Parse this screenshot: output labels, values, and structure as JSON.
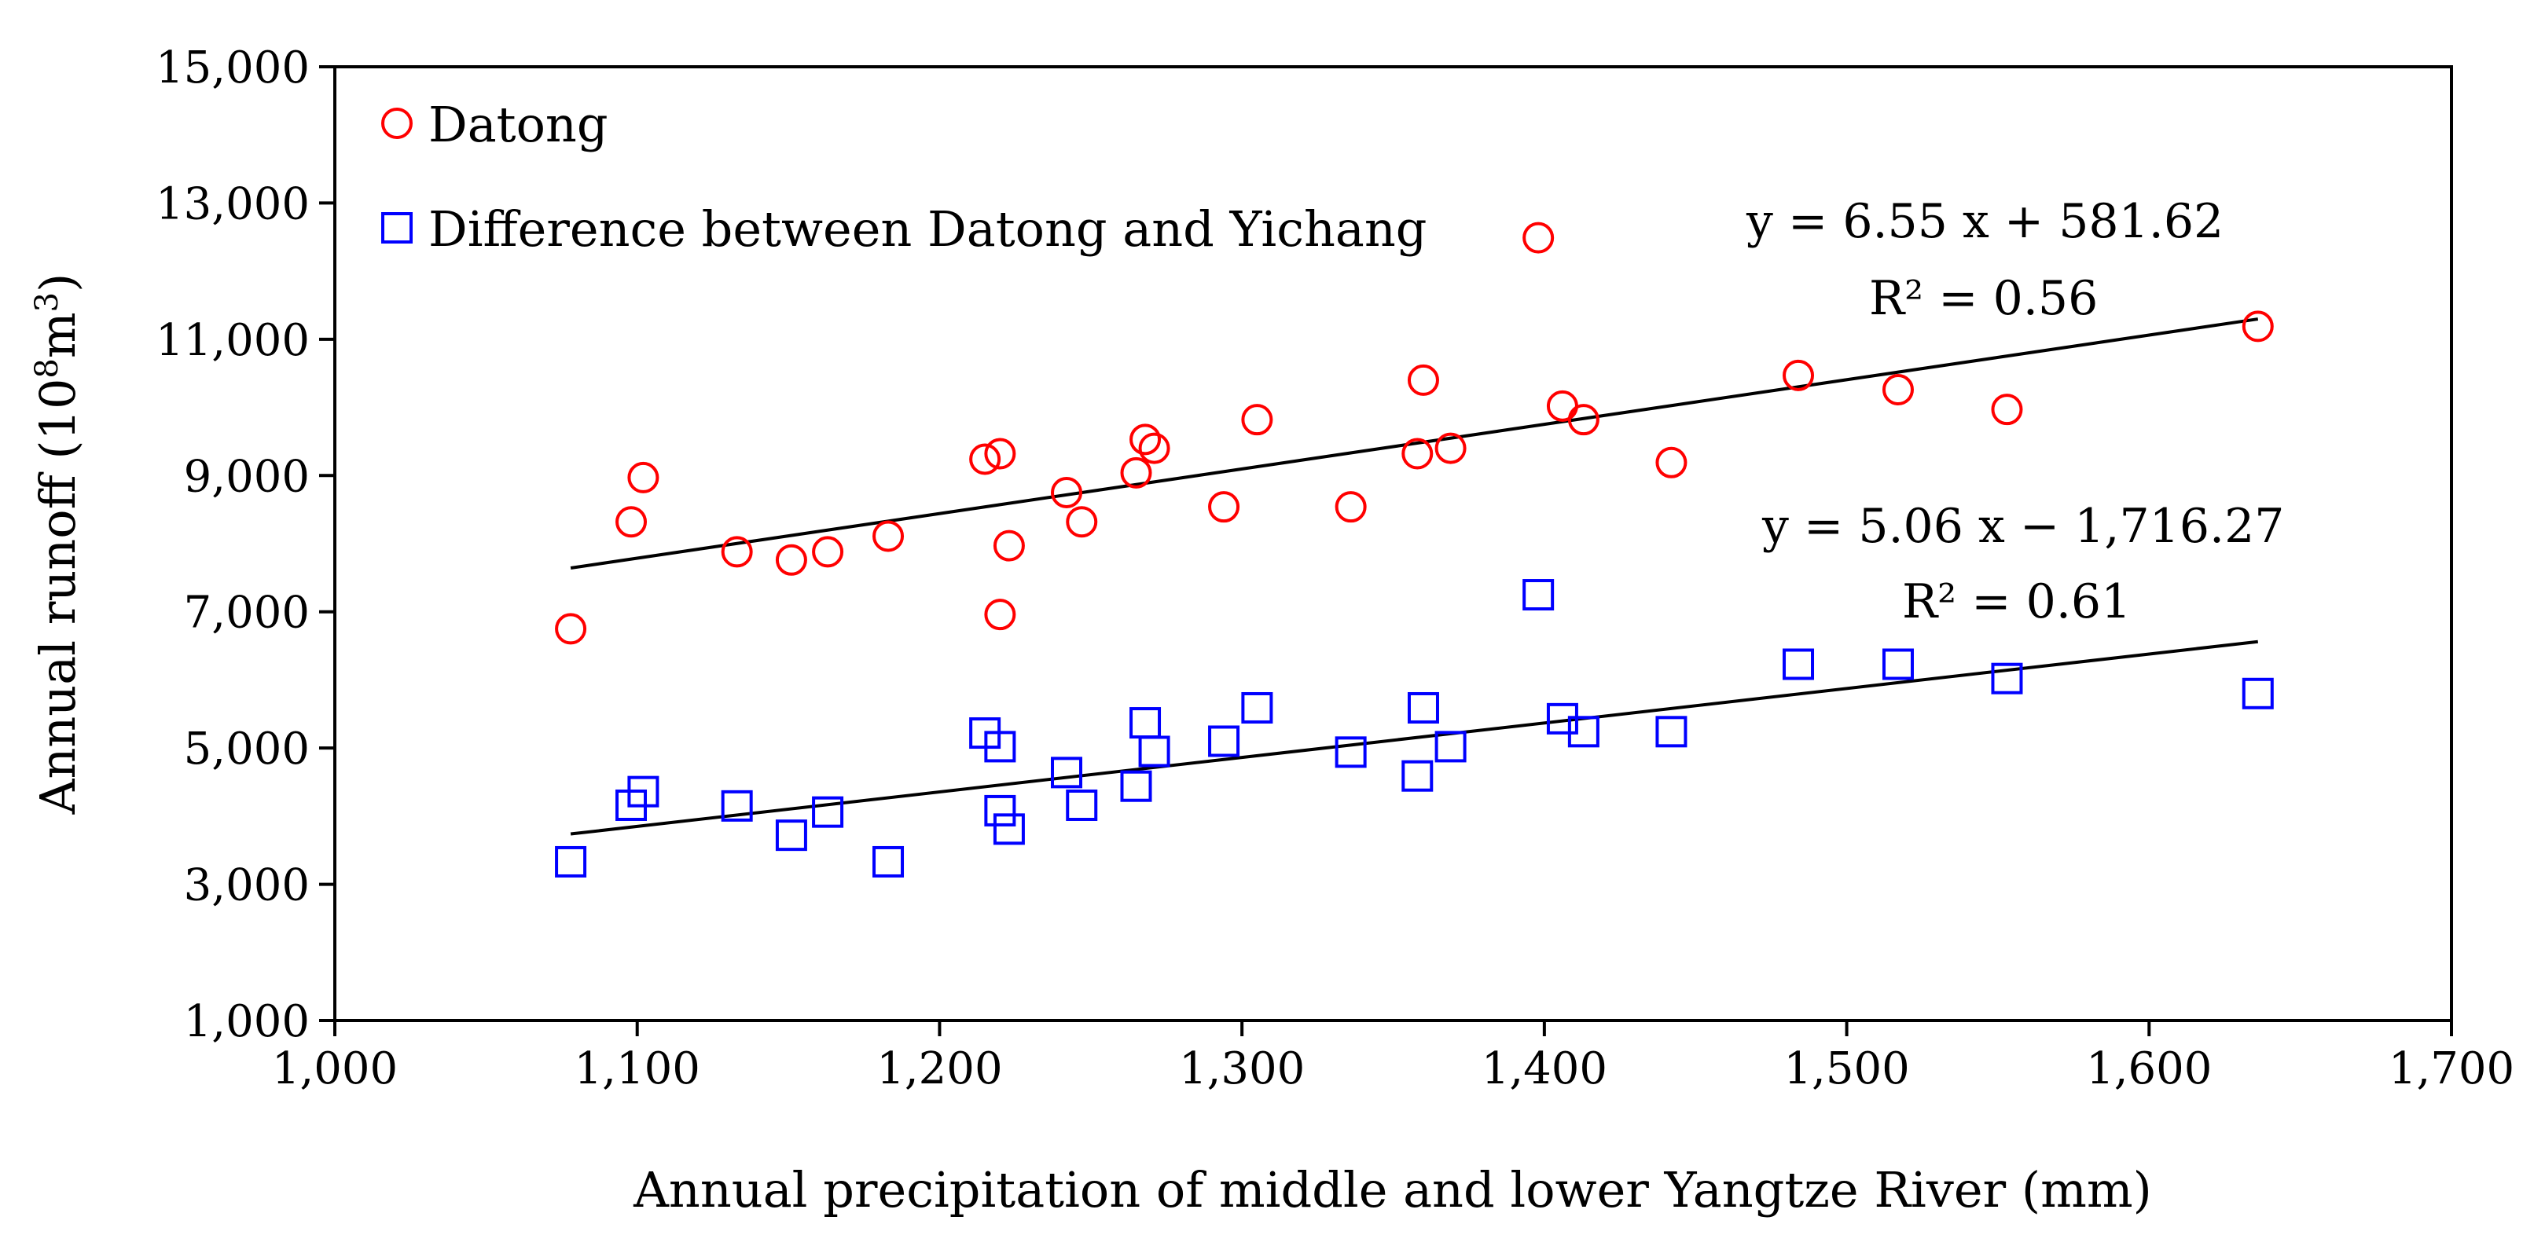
{
  "chart_data": {
    "type": "scatter",
    "xlabel": "Annual precipitation of middle and lower Yangtze River (mm)",
    "ylabel": "Annual runoff",
    "ylabel_unit_base": "10",
    "ylabel_unit_exp": "8",
    "ylabel_unit_m": "m",
    "ylabel_unit_m_exp": "3",
    "xlim": [
      1000,
      1700
    ],
    "ylim": [
      1000,
      15000
    ],
    "xticks": [
      1000,
      1100,
      1200,
      1300,
      1400,
      1500,
      1600,
      1700
    ],
    "xtick_labels": [
      "1,000",
      "1,100",
      "1,200",
      "1,300",
      "1,400",
      "1,500",
      "1,600",
      "1,700"
    ],
    "yticks": [
      1000,
      3000,
      5000,
      7000,
      9000,
      11000,
      13000,
      15000
    ],
    "ytick_labels": [
      "1,000",
      "3,000",
      "5,000",
      "7,000",
      "9,000",
      "11,000",
      "13,000",
      "15,000"
    ],
    "legend_position": "top-left",
    "series": [
      {
        "name": "Datong",
        "marker": "circle",
        "color": "#ff0000",
        "points": [
          [
            1078,
            6750
          ],
          [
            1098,
            8320
          ],
          [
            1102,
            8970
          ],
          [
            1133,
            7880
          ],
          [
            1151,
            7760
          ],
          [
            1163,
            7880
          ],
          [
            1183,
            8110
          ],
          [
            1215,
            9240
          ],
          [
            1220,
            9320
          ],
          [
            1220,
            6960
          ],
          [
            1223,
            7970
          ],
          [
            1242,
            8750
          ],
          [
            1247,
            8320
          ],
          [
            1265,
            9040
          ],
          [
            1268,
            9530
          ],
          [
            1271,
            9400
          ],
          [
            1294,
            8540
          ],
          [
            1305,
            9820
          ],
          [
            1336,
            8540
          ],
          [
            1358,
            9320
          ],
          [
            1360,
            10400
          ],
          [
            1369,
            9400
          ],
          [
            1398,
            12490
          ],
          [
            1406,
            10020
          ],
          [
            1413,
            9820
          ],
          [
            1442,
            9190
          ],
          [
            1484,
            10470
          ],
          [
            1517,
            10260
          ],
          [
            1553,
            9970
          ],
          [
            1636,
            11190
          ]
        ],
        "trend": {
          "slope": 6.55,
          "intercept": 581.62,
          "x_range": [
            1078,
            1636
          ],
          "equation": "y = 6.55 x + 581.62",
          "r2": "R² = 0.56"
        }
      },
      {
        "name": "Difference between Datong and Yichang",
        "marker": "square",
        "color": "#0000ff",
        "points": [
          [
            1078,
            3330
          ],
          [
            1098,
            4160
          ],
          [
            1102,
            4360
          ],
          [
            1133,
            4150
          ],
          [
            1151,
            3720
          ],
          [
            1163,
            4060
          ],
          [
            1183,
            3330
          ],
          [
            1215,
            5220
          ],
          [
            1220,
            5020
          ],
          [
            1220,
            4080
          ],
          [
            1223,
            3810
          ],
          [
            1242,
            4640
          ],
          [
            1247,
            4160
          ],
          [
            1265,
            4440
          ],
          [
            1268,
            5370
          ],
          [
            1271,
            4950
          ],
          [
            1294,
            5100
          ],
          [
            1305,
            5590
          ],
          [
            1336,
            4940
          ],
          [
            1358,
            4590
          ],
          [
            1360,
            5590
          ],
          [
            1369,
            5020
          ],
          [
            1398,
            7250
          ],
          [
            1406,
            5430
          ],
          [
            1413,
            5240
          ],
          [
            1442,
            5240
          ],
          [
            1484,
            6230
          ],
          [
            1517,
            6230
          ],
          [
            1553,
            6020
          ],
          [
            1636,
            5800
          ]
        ],
        "trend": {
          "slope": 5.06,
          "intercept": -1716.27,
          "x_range": [
            1078,
            1636
          ],
          "equation": "y = 5.06 x − 1,716.27",
          "r2": "R² = 0.61"
        }
      }
    ]
  }
}
